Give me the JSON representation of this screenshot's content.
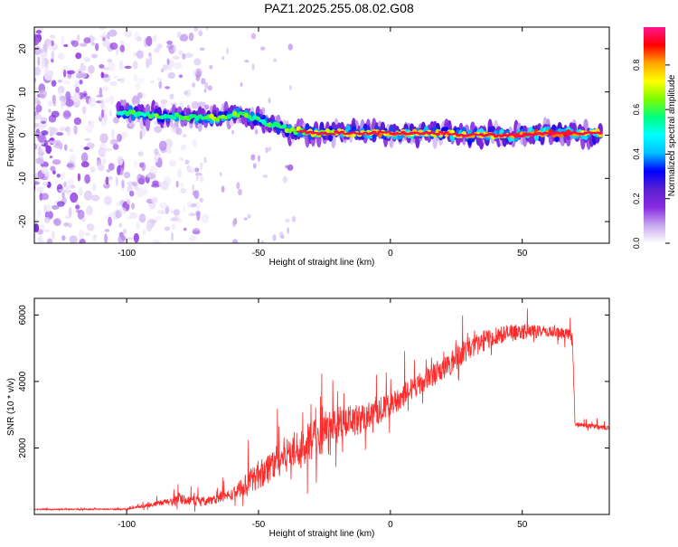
{
  "figure": {
    "title": "PAZ1.2025.255.08.02.G08"
  },
  "chart_data": [
    {
      "type": "heatmap",
      "name": "spectrogram",
      "xlabel": "Height of straight line (km)",
      "ylabel": "Frequency (Hz)",
      "xlim": [
        -135,
        83
      ],
      "ylim": [
        -25,
        25
      ],
      "xticks": [
        -100,
        -50,
        0,
        50
      ],
      "yticks": [
        -20,
        -10,
        0,
        10,
        20
      ],
      "colorbar": {
        "label": "Normalized spectral amplitude",
        "range": [
          0,
          0.97
        ],
        "ticks": [
          0.0,
          0.2,
          0.4,
          0.6,
          0.8
        ],
        "colormap": [
          "#ffffff",
          "#c8a8f0",
          "#8a2be2",
          "#5a1fd0",
          "#0000ff",
          "#00bfff",
          "#00ffff",
          "#00ff7f",
          "#7cfc00",
          "#ffff00",
          "#ffa500",
          "#ff0000",
          "#ff1493"
        ]
      },
      "ridge": [
        {
          "x": -103,
          "f": 5.5,
          "amp": 0.3
        },
        {
          "x": -95,
          "f": 5.0,
          "amp": 0.3
        },
        {
          "x": -85,
          "f": 4.5,
          "amp": 0.35
        },
        {
          "x": -75,
          "f": 4.2,
          "amp": 0.35
        },
        {
          "x": -65,
          "f": 4.0,
          "amp": 0.4
        },
        {
          "x": -58,
          "f": 5.0,
          "amp": 0.35
        },
        {
          "x": -50,
          "f": 3.5,
          "amp": 0.3
        },
        {
          "x": -45,
          "f": 2.5,
          "amp": 0.3
        },
        {
          "x": -40,
          "f": 1.5,
          "amp": 0.35
        },
        {
          "x": -35,
          "f": 1.0,
          "amp": 0.4
        },
        {
          "x": -30,
          "f": 0.5,
          "amp": 0.45
        },
        {
          "x": -20,
          "f": 0.5,
          "amp": 0.5
        },
        {
          "x": -10,
          "f": 0.5,
          "amp": 0.5
        },
        {
          "x": 0,
          "f": 0.5,
          "amp": 0.55
        },
        {
          "x": 10,
          "f": 0.5,
          "amp": 0.55
        },
        {
          "x": 20,
          "f": 0.5,
          "amp": 0.5
        },
        {
          "x": 30,
          "f": 0.0,
          "amp": 0.55
        },
        {
          "x": 40,
          "f": 0.0,
          "amp": 0.55
        },
        {
          "x": 50,
          "f": 0.0,
          "amp": 0.6
        },
        {
          "x": 60,
          "f": 0.5,
          "amp": 0.6
        },
        {
          "x": 70,
          "f": 0.5,
          "amp": 0.6
        },
        {
          "x": 80,
          "f": 0.5,
          "amp": 0.55
        }
      ],
      "noise_region": {
        "x_from": -135,
        "x_to": -72,
        "f_from": -25,
        "f_to": 25
      }
    },
    {
      "type": "line",
      "name": "snr",
      "xlabel": "Height of straight line (km)",
      "ylabel": "SNR (10 * v/v)",
      "xlim": [
        -135,
        83
      ],
      "ylim": [
        0,
        6500
      ],
      "xticks": [
        -100,
        -50,
        0,
        50
      ],
      "yticks": [
        2000,
        4000,
        6000
      ],
      "color": "#ff2a2a",
      "envelope": [
        {
          "x": -135,
          "mean": 150,
          "spread": 40
        },
        {
          "x": -100,
          "mean": 160,
          "spread": 40
        },
        {
          "x": -90,
          "mean": 300,
          "spread": 120
        },
        {
          "x": -80,
          "mean": 450,
          "spread": 300
        },
        {
          "x": -70,
          "mean": 400,
          "spread": 250
        },
        {
          "x": -60,
          "mean": 600,
          "spread": 350
        },
        {
          "x": -50,
          "mean": 1200,
          "spread": 900
        },
        {
          "x": -40,
          "mean": 1800,
          "spread": 1100
        },
        {
          "x": -30,
          "mean": 2200,
          "spread": 1200
        },
        {
          "x": -20,
          "mean": 2700,
          "spread": 1100
        },
        {
          "x": -10,
          "mean": 2900,
          "spread": 900
        },
        {
          "x": 0,
          "mean": 3300,
          "spread": 700
        },
        {
          "x": 10,
          "mean": 3900,
          "spread": 700
        },
        {
          "x": 20,
          "mean": 4400,
          "spread": 700
        },
        {
          "x": 30,
          "mean": 5000,
          "spread": 700
        },
        {
          "x": 40,
          "mean": 5400,
          "spread": 600
        },
        {
          "x": 50,
          "mean": 5500,
          "spread": 450
        },
        {
          "x": 60,
          "mean": 5500,
          "spread": 350
        },
        {
          "x": 69,
          "mean": 5400,
          "spread": 300
        },
        {
          "x": 70,
          "mean": 2700,
          "spread": 180
        },
        {
          "x": 83,
          "mean": 2600,
          "spread": 120
        }
      ]
    }
  ]
}
